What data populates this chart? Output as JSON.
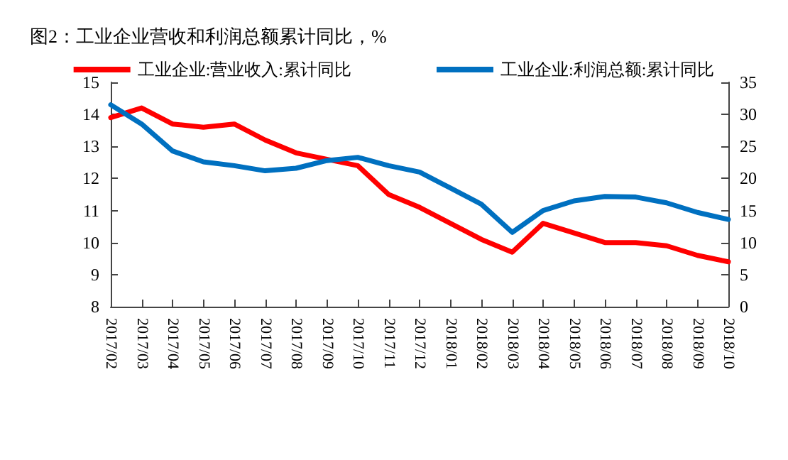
{
  "chart_data": {
    "type": "line",
    "title": "图2：工业企业营收和利润总额累计同比，%",
    "categories": [
      "2017/02",
      "2017/03",
      "2017/04",
      "2017/05",
      "2017/06",
      "2017/07",
      "2017/08",
      "2017/09",
      "2017/10",
      "2017/11",
      "2017/12",
      "2018/01",
      "2018/02",
      "2018/03",
      "2018/04",
      "2018/05",
      "2018/06",
      "2018/07",
      "2018/08",
      "2018/09",
      "2018/10"
    ],
    "series": [
      {
        "name": "工业企业:营业收入:累计同比",
        "color": "#ff0000",
        "values": [
          13.9,
          14.2,
          13.7,
          13.6,
          13.7,
          13.2,
          12.8,
          12.6,
          12.4,
          11.5,
          11.1,
          10.6,
          10.1,
          9.7,
          10.6,
          10.3,
          10.0,
          10.0,
          9.9,
          9.6,
          9.4
        ]
      },
      {
        "name": "工业企业:利润总额:累计同比",
        "color": "#0070c0",
        "axis": "y2",
        "values": [
          31.5,
          28.5,
          24.3,
          22.6,
          22.0,
          21.2,
          21.6,
          22.8,
          23.3,
          22.0,
          21.0,
          18.5,
          16.0,
          11.6,
          15.0,
          16.5,
          17.2,
          17.1,
          16.2,
          14.7,
          13.6
        ]
      }
    ],
    "ylim": [
      8,
      15
    ],
    "yticks": [
      8,
      9,
      10,
      11,
      12,
      13,
      14,
      15
    ],
    "y2lim": [
      0,
      35
    ],
    "y2ticks": [
      0,
      5,
      10,
      15,
      20,
      25,
      30,
      35
    ],
    "grid": false,
    "legend": "top",
    "marker": "none",
    "line_style": "solid"
  }
}
